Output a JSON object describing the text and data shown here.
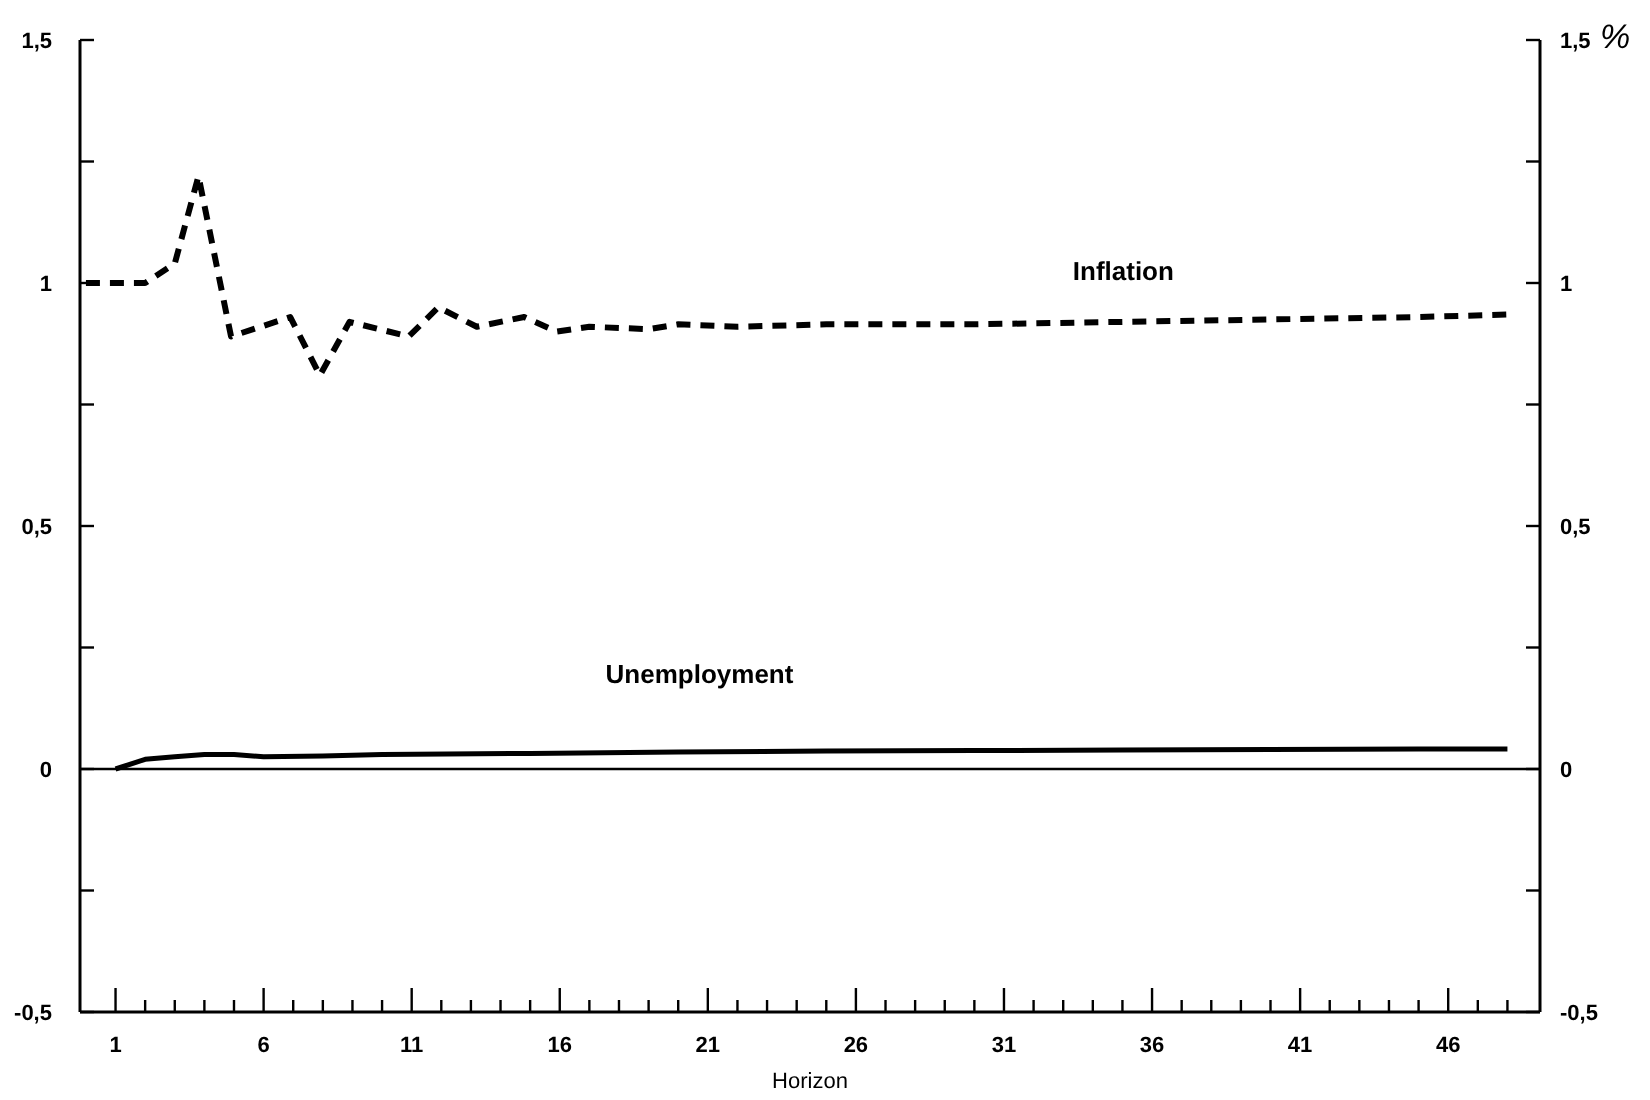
{
  "chart_data": {
    "type": "line",
    "xlabel": "Horizon",
    "y2label": "%",
    "xlim": [
      -0.2,
      49.1
    ],
    "xticks": [
      {
        "value": 1,
        "label": "1"
      },
      {
        "value": 2,
        "label": null
      },
      {
        "value": 3,
        "label": null
      },
      {
        "value": 4,
        "label": null
      },
      {
        "value": 5,
        "label": null
      },
      {
        "value": 6,
        "label": "6"
      },
      {
        "value": 7,
        "label": null
      },
      {
        "value": 8,
        "label": null
      },
      {
        "value": 9,
        "label": null
      },
      {
        "value": 10,
        "label": null
      },
      {
        "value": 11,
        "label": "11"
      },
      {
        "value": 12,
        "label": null
      },
      {
        "value": 13,
        "label": null
      },
      {
        "value": 14,
        "label": null
      },
      {
        "value": 15,
        "label": null
      },
      {
        "value": 16,
        "label": "16"
      },
      {
        "value": 17,
        "label": null
      },
      {
        "value": 18,
        "label": null
      },
      {
        "value": 19,
        "label": null
      },
      {
        "value": 20,
        "label": null
      },
      {
        "value": 21,
        "label": "21"
      },
      {
        "value": 22,
        "label": null
      },
      {
        "value": 23,
        "label": null
      },
      {
        "value": 24,
        "label": null
      },
      {
        "value": 25,
        "label": null
      },
      {
        "value": 26,
        "label": "26"
      },
      {
        "value": 27,
        "label": null
      },
      {
        "value": 28,
        "label": null
      },
      {
        "value": 29,
        "label": null
      },
      {
        "value": 30,
        "label": null
      },
      {
        "value": 31,
        "label": "31"
      },
      {
        "value": 32,
        "label": null
      },
      {
        "value": 33,
        "label": null
      },
      {
        "value": 34,
        "label": null
      },
      {
        "value": 35,
        "label": null
      },
      {
        "value": 36,
        "label": "36"
      },
      {
        "value": 37,
        "label": null
      },
      {
        "value": 38,
        "label": null
      },
      {
        "value": 39,
        "label": null
      },
      {
        "value": 40,
        "label": null
      },
      {
        "value": 41,
        "label": "41"
      },
      {
        "value": 42,
        "label": null
      },
      {
        "value": 43,
        "label": null
      },
      {
        "value": 44,
        "label": null
      },
      {
        "value": 45,
        "label": null
      },
      {
        "value": 46,
        "label": "46"
      },
      {
        "value": 47,
        "label": null
      },
      {
        "value": 48,
        "label": null
      }
    ],
    "ylim": [
      -0.5,
      1.5
    ],
    "yticks": [
      {
        "value": -0.5,
        "label": "-0,5"
      },
      {
        "value": -0.25,
        "label": null
      },
      {
        "value": 0,
        "label": "0"
      },
      {
        "value": 0.25,
        "label": null
      },
      {
        "value": 0.5,
        "label": "0,5"
      },
      {
        "value": 0.75,
        "label": null
      },
      {
        "value": 1,
        "label": "1"
      },
      {
        "value": 1.25,
        "label": null
      },
      {
        "value": 1.5,
        "label": "1,5"
      }
    ],
    "y2lim": [
      -0.5,
      1.5
    ],
    "y2ticks": [
      {
        "value": -0.5,
        "label": "-0,5"
      },
      {
        "value": -0.25,
        "label": null
      },
      {
        "value": 0,
        "label": "0"
      },
      {
        "value": 0.25,
        "label": null
      },
      {
        "value": 0.5,
        "label": "0,5"
      },
      {
        "value": 0.75,
        "label": null
      },
      {
        "value": 1,
        "label": "1"
      },
      {
        "value": 1.25,
        "label": null
      },
      {
        "value": 1.5,
        "label": "1,5"
      }
    ],
    "ref_lines": [
      {
        "axis": "y",
        "value": 0,
        "label": null,
        "color": "#000000"
      }
    ],
    "grid": false,
    "marker": "none",
    "series": [
      {
        "name": "Inflation",
        "color": "#000000",
        "line_style": "dashed",
        "x": [
          0,
          2,
          3,
          3.8,
          4.9,
          6.9,
          7.9,
          8.9,
          10.9,
          11.9,
          13.2,
          14.8,
          15.9,
          17,
          19,
          20,
          22,
          25,
          30,
          35,
          40,
          45,
          48
        ],
        "values": [
          1.0,
          1.0,
          1.04,
          1.22,
          0.89,
          0.93,
          0.81,
          0.92,
          0.89,
          0.95,
          0.91,
          0.93,
          0.9,
          0.91,
          0.905,
          0.915,
          0.91,
          0.915,
          0.915,
          0.92,
          0.925,
          0.93,
          0.935
        ]
      },
      {
        "name": "Unemployment",
        "color": "#000000",
        "line_style": "solid",
        "x": [
          1,
          2,
          3,
          4,
          5,
          6,
          8,
          10,
          15,
          20,
          25,
          30,
          35,
          40,
          45,
          48
        ],
        "values": [
          0,
          0.02,
          0.025,
          0.03,
          0.03,
          0.025,
          0.027,
          0.03,
          0.032,
          0.035,
          0.037,
          0.038,
          0.039,
          0.04,
          0.041,
          0.041
        ]
      }
    ]
  }
}
